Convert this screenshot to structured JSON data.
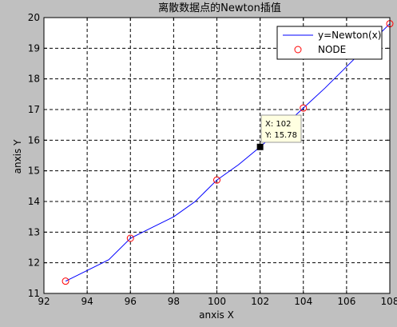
{
  "chart_data": {
    "type": "line",
    "title": "离散数据点的Newton插值",
    "xlabel": "anxis X",
    "ylabel": "anxis Y",
    "xlim": [
      92,
      108
    ],
    "ylim": [
      11,
      20
    ],
    "xticks": [
      92,
      94,
      96,
      98,
      100,
      102,
      104,
      106,
      108
    ],
    "yticks": [
      11,
      12,
      13,
      14,
      15,
      16,
      17,
      18,
      19,
      20
    ],
    "grid": true,
    "legend_position": "top-right",
    "series": [
      {
        "name": "y=Newton(x)",
        "style": "line",
        "color": "#0000ff",
        "x": [
          93,
          94,
          95,
          96,
          97,
          98,
          99,
          100,
          101,
          102,
          103,
          104,
          105,
          106,
          107,
          108
        ],
        "y": [
          11.4,
          11.75,
          12.1,
          12.8,
          13.15,
          13.5,
          14.0,
          14.7,
          15.2,
          15.78,
          16.4,
          17.05,
          17.7,
          18.4,
          19.1,
          19.8
        ]
      },
      {
        "name": "NODE",
        "style": "marker",
        "marker": "circle",
        "color": "#ff0000",
        "x": [
          93,
          96,
          100,
          104,
          108
        ],
        "y": [
          11.4,
          12.8,
          14.7,
          17.05,
          19.8
        ]
      }
    ],
    "datatip": {
      "x": 102,
      "y": 15.78,
      "x_text": "X: 102",
      "y_text": "Y: 15.78"
    }
  }
}
